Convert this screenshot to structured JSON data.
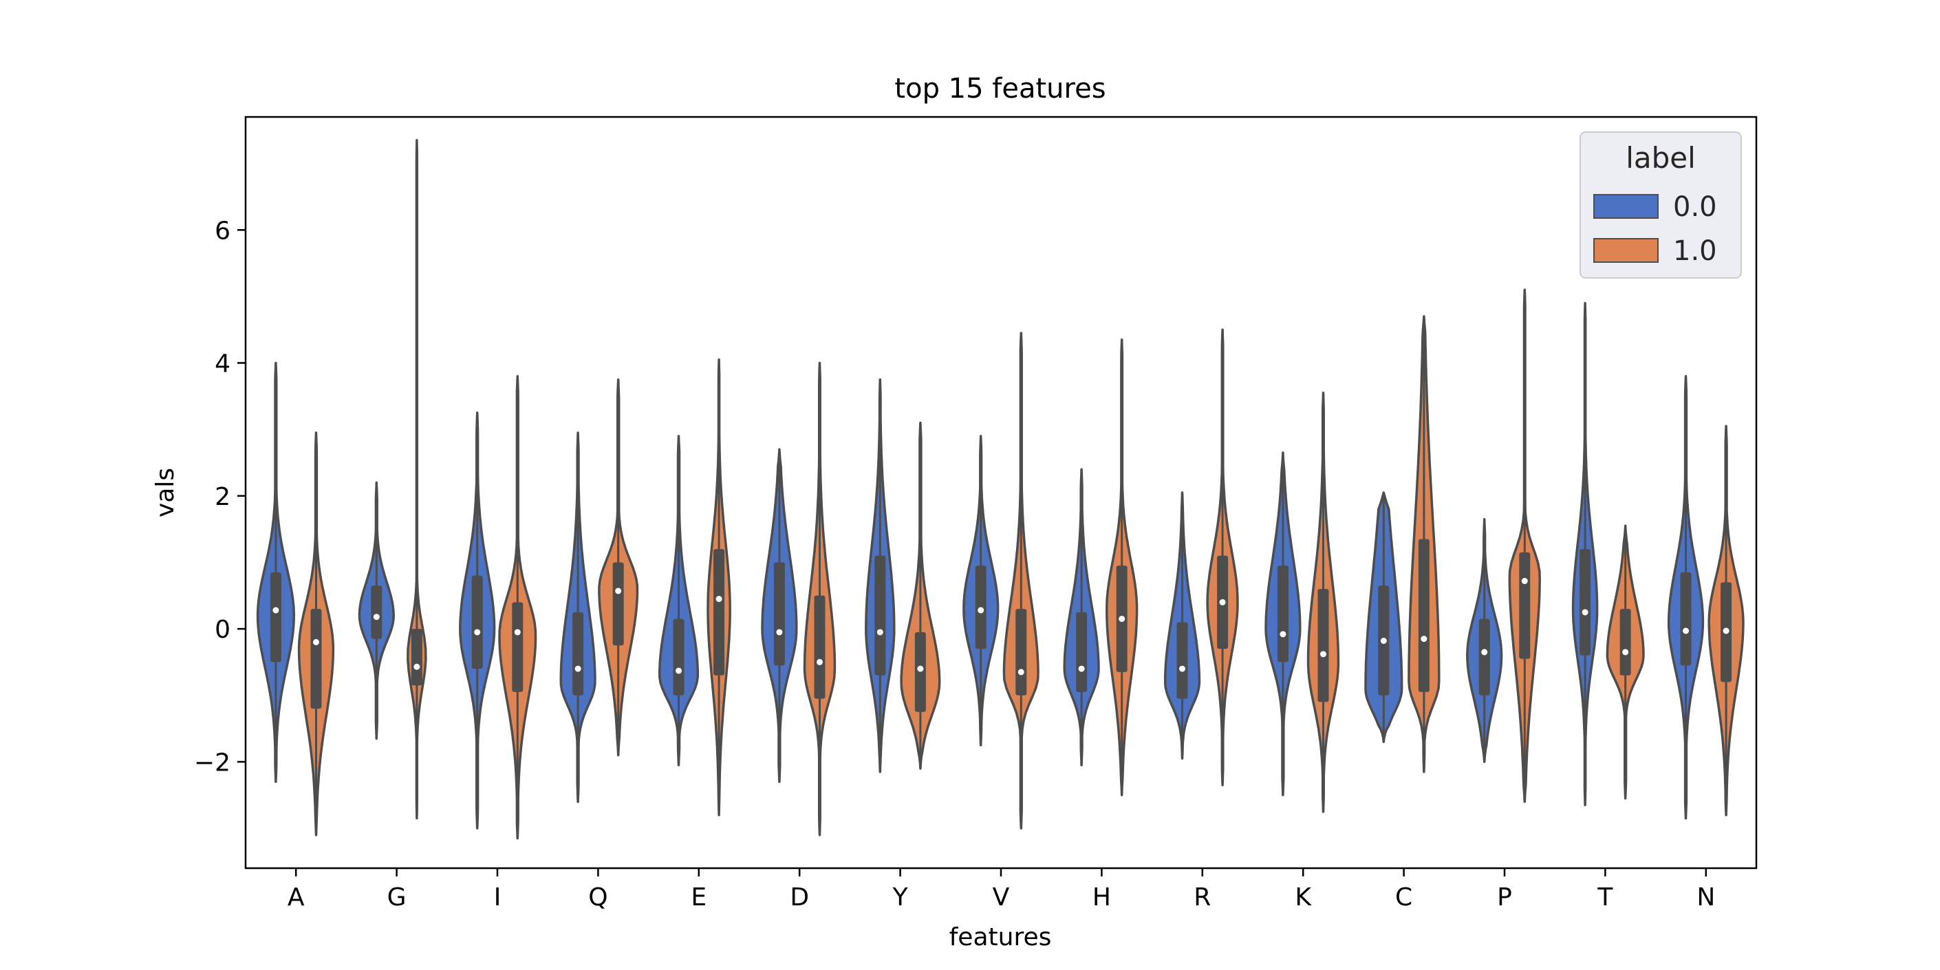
{
  "chart_data": {
    "type": "violin",
    "title": "top 15 features",
    "xlabel": "features",
    "ylabel": "vals",
    "ylim": [
      -3.6,
      7.7
    ],
    "yticks": [
      -2,
      0,
      2,
      4,
      6
    ],
    "ytick_labels": [
      "−2",
      "0",
      "2",
      "4",
      "6"
    ],
    "categories": [
      "A",
      "G",
      "I",
      "Q",
      "E",
      "D",
      "Y",
      "V",
      "H",
      "R",
      "K",
      "C",
      "P",
      "T",
      "N"
    ],
    "legend": {
      "title": "label",
      "position": "top-right",
      "entries": [
        {
          "label": "0.0",
          "color": "#4c72c4"
        },
        {
          "label": "1.0",
          "color": "#dd8452"
        }
      ]
    },
    "series": [
      {
        "label": "0.0",
        "color": "#4c72c4",
        "violins": [
          {
            "cat": "A",
            "min": -2.3,
            "max": 4.0,
            "q1": -0.5,
            "median": 0.28,
            "q3": 0.85,
            "mode": 0.2,
            "width": 0.9
          },
          {
            "cat": "G",
            "min": -1.65,
            "max": 2.2,
            "q1": -0.15,
            "median": 0.18,
            "q3": 0.65,
            "mode": 0.2,
            "width": 0.85
          },
          {
            "cat": "I",
            "min": -3.0,
            "max": 3.25,
            "q1": -0.6,
            "median": -0.05,
            "q3": 0.8,
            "mode": 0.0,
            "width": 0.85
          },
          {
            "cat": "Q",
            "min": -2.6,
            "max": 2.95,
            "q1": -1.0,
            "median": -0.6,
            "q3": 0.25,
            "mode": -0.8,
            "width": 0.85
          },
          {
            "cat": "E",
            "min": -2.05,
            "max": 2.9,
            "q1": -1.0,
            "median": -0.63,
            "q3": 0.15,
            "mode": -0.7,
            "width": 0.95
          },
          {
            "cat": "D",
            "min": -2.3,
            "max": 2.7,
            "q1": -0.55,
            "median": -0.05,
            "q3": 1.0,
            "mode": 0.0,
            "width": 0.85
          },
          {
            "cat": "Y",
            "min": -2.15,
            "max": 3.75,
            "q1": -0.7,
            "median": -0.05,
            "q3": 1.1,
            "mode": 0.0,
            "width": 0.7
          },
          {
            "cat": "V",
            "min": -1.75,
            "max": 2.9,
            "q1": -0.3,
            "median": 0.28,
            "q3": 0.95,
            "mode": 0.3,
            "width": 0.85
          },
          {
            "cat": "H",
            "min": -2.05,
            "max": 2.4,
            "q1": -0.95,
            "median": -0.6,
            "q3": 0.25,
            "mode": -0.6,
            "width": 0.85
          },
          {
            "cat": "R",
            "min": -1.95,
            "max": 2.05,
            "q1": -1.05,
            "median": -0.6,
            "q3": 0.1,
            "mode": -0.8,
            "width": 0.85
          },
          {
            "cat": "K",
            "min": -2.5,
            "max": 2.65,
            "q1": -0.5,
            "median": -0.08,
            "q3": 0.95,
            "mode": 0.0,
            "width": 0.85
          },
          {
            "cat": "C",
            "min": -1.7,
            "max": 2.05,
            "q1": -1.0,
            "median": -0.18,
            "q3": 0.65,
            "mode": -0.9,
            "width": 0.9
          },
          {
            "cat": "P",
            "min": -2.0,
            "max": 1.65,
            "q1": -1.0,
            "median": -0.35,
            "q3": 0.15,
            "mode": -0.4,
            "width": 0.85
          },
          {
            "cat": "T",
            "min": -2.65,
            "max": 4.9,
            "q1": -0.4,
            "median": 0.25,
            "q3": 1.2,
            "mode": 0.3,
            "width": 0.6
          },
          {
            "cat": "N",
            "min": -2.85,
            "max": 3.8,
            "q1": -0.55,
            "median": -0.03,
            "q3": 0.85,
            "mode": 0.1,
            "width": 0.85
          }
        ]
      },
      {
        "label": "1.0",
        "color": "#dd8452",
        "violins": [
          {
            "cat": "A",
            "min": -3.1,
            "max": 2.95,
            "q1": -1.2,
            "median": -0.2,
            "q3": 0.3,
            "mode": -0.3,
            "width": 0.85
          },
          {
            "cat": "G",
            "min": -2.85,
            "max": 7.35,
            "q1": -0.85,
            "median": -0.57,
            "q3": 0.0,
            "mode": -0.4,
            "width": 0.45
          },
          {
            "cat": "I",
            "min": -3.15,
            "max": 3.8,
            "q1": -0.95,
            "median": -0.05,
            "q3": 0.4,
            "mode": -0.1,
            "width": 0.9
          },
          {
            "cat": "Q",
            "min": -1.9,
            "max": 3.75,
            "q1": -0.25,
            "median": 0.57,
            "q3": 1.0,
            "mode": 0.6,
            "width": 0.95
          },
          {
            "cat": "E",
            "min": -2.8,
            "max": 4.05,
            "q1": -0.7,
            "median": 0.45,
            "q3": 1.2,
            "mode": 0.3,
            "width": 0.55
          },
          {
            "cat": "D",
            "min": -3.1,
            "max": 4.0,
            "q1": -1.05,
            "median": -0.5,
            "q3": 0.5,
            "mode": -0.6,
            "width": 0.75
          },
          {
            "cat": "Y",
            "min": -2.1,
            "max": 3.1,
            "q1": -1.25,
            "median": -0.6,
            "q3": -0.05,
            "mode": -0.8,
            "width": 0.95
          },
          {
            "cat": "V",
            "min": -3.0,
            "max": 4.45,
            "q1": -1.0,
            "median": -0.65,
            "q3": 0.3,
            "mode": -0.7,
            "width": 0.85
          },
          {
            "cat": "H",
            "min": -2.5,
            "max": 4.35,
            "q1": -0.65,
            "median": 0.15,
            "q3": 0.95,
            "mode": 0.3,
            "width": 0.75
          },
          {
            "cat": "R",
            "min": -2.35,
            "max": 4.5,
            "q1": -0.3,
            "median": 0.4,
            "q3": 1.1,
            "mode": 0.4,
            "width": 0.75
          },
          {
            "cat": "K",
            "min": -2.75,
            "max": 3.55,
            "q1": -1.1,
            "median": -0.38,
            "q3": 0.6,
            "mode": -0.5,
            "width": 0.75
          },
          {
            "cat": "C",
            "min": -2.15,
            "max": 4.7,
            "q1": -0.95,
            "median": -0.15,
            "q3": 1.35,
            "mode": -0.8,
            "width": 0.75
          },
          {
            "cat": "P",
            "min": -2.6,
            "max": 5.1,
            "q1": -0.45,
            "median": 0.72,
            "q3": 1.15,
            "mode": 0.8,
            "width": 0.75
          },
          {
            "cat": "T",
            "min": -2.55,
            "max": 1.55,
            "q1": -0.7,
            "median": -0.35,
            "q3": 0.3,
            "mode": -0.4,
            "width": 0.9
          },
          {
            "cat": "N",
            "min": -2.8,
            "max": 3.05,
            "q1": -0.8,
            "median": -0.03,
            "q3": 0.7,
            "mode": 0.1,
            "width": 0.85
          }
        ]
      }
    ]
  }
}
